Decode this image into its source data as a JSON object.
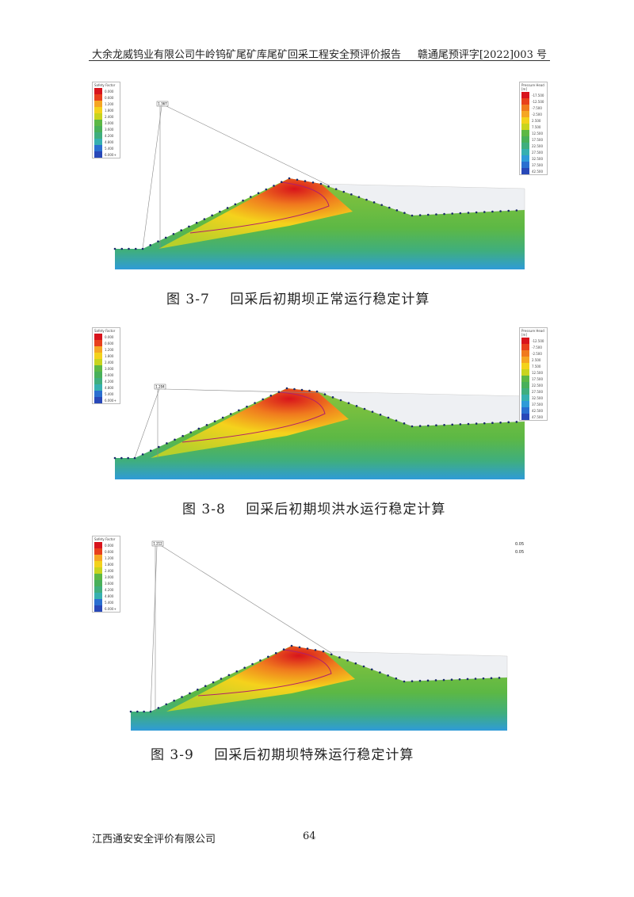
{
  "header": {
    "left": "大余龙威钨业有限公司牛岭钨矿尾矿库尾矿回采工程安全预评价报告",
    "right": "赣通尾预评字[2022]003 号"
  },
  "figures": [
    {
      "caption": "图 3-7    回采后初期坝正常运行稳定计算",
      "min_fs_label": "1.367",
      "safety_legend": {
        "title": "Safety Factor",
        "labels": [
          "0.000",
          "0.600",
          "1.200",
          "1.800",
          "2.400",
          "3.000",
          "3.600",
          "4.200",
          "4.800",
          "5.400",
          "6.000+"
        ]
      },
      "pressure_legend": {
        "title": "Pressure Head [m]",
        "labels": [
          "-17.500",
          "-12.500",
          "-7.500",
          "-2.500",
          "2.500",
          "7.500",
          "12.500",
          "17.500",
          "22.500",
          "27.500",
          "32.500",
          "37.500",
          "42.500"
        ]
      }
    },
    {
      "caption": "图 3-8    回采后初期坝洪水运行稳定计算",
      "min_fs_label": "1.204",
      "safety_legend": {
        "title": "Safety Factor",
        "labels": [
          "0.000",
          "0.600",
          "1.200",
          "1.800",
          "2.400",
          "3.000",
          "3.600",
          "4.200",
          "4.800",
          "5.400",
          "6.000+"
        ]
      },
      "pressure_legend": {
        "title": "Pressure Head [m]",
        "labels": [
          "-12.500",
          "-7.500",
          "-2.500",
          "2.500",
          "7.500",
          "12.500",
          "17.500",
          "22.500",
          "27.500",
          "32.500",
          "37.500",
          "42.500",
          "47.500"
        ]
      }
    },
    {
      "caption": "图 3-9    回采后初期坝特殊运行稳定计算",
      "min_fs_label": "1.212",
      "safety_legend": {
        "title": "Safety Factor",
        "labels": [
          "0.000",
          "0.600",
          "1.200",
          "1.800",
          "2.400",
          "3.000",
          "3.600",
          "4.200",
          "4.800",
          "5.400",
          "6.000+"
        ]
      },
      "seismic_labels": [
        "0.05",
        "0.05"
      ]
    }
  ],
  "footer": {
    "company": "江西通安安全评价有限公司",
    "page": "64"
  },
  "colors": {
    "legend": [
      "#d8141c",
      "#e8401c",
      "#f07a1e",
      "#f5a623",
      "#f3d21c",
      "#c8d41e",
      "#8cc43a",
      "#5cb845",
      "#48b05a",
      "#3fae7e",
      "#36b0b0",
      "#2f9bd8",
      "#2a6fd0",
      "#2848b8"
    ]
  }
}
